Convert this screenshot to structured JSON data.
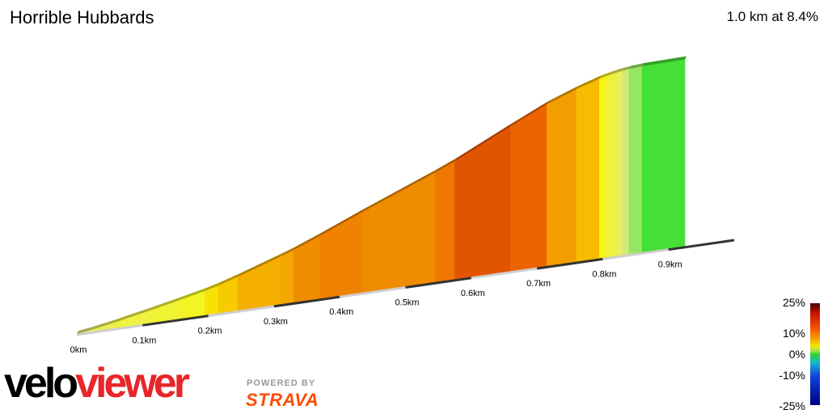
{
  "header": {
    "title": "Horrible Hubbards",
    "summary": "1.0 km at 8.4%"
  },
  "chart_data": {
    "type": "area",
    "title": "Horrible Hubbards",
    "subtitle": "1.0 km at 8.4%",
    "x_unit": "km",
    "x_ticks": [
      "0km",
      "0.1km",
      "0.2km",
      "0.3km",
      "0.4km",
      "0.5km",
      "0.6km",
      "0.7km",
      "0.8km",
      "0.9km"
    ],
    "xlim": [
      0,
      1.0
    ],
    "segments": [
      {
        "from": 0.0,
        "to": 0.02,
        "gradient": 4.0
      },
      {
        "from": 0.02,
        "to": 0.045,
        "gradient": 5.0
      },
      {
        "from": 0.045,
        "to": 0.06,
        "gradient": 5.5
      },
      {
        "from": 0.06,
        "to": 0.075,
        "gradient": 6.0
      },
      {
        "from": 0.075,
        "to": 0.11,
        "gradient": 5.8
      },
      {
        "from": 0.11,
        "to": 0.155,
        "gradient": 6.2
      },
      {
        "from": 0.155,
        "to": 0.195,
        "gradient": 6.6
      },
      {
        "from": 0.195,
        "to": 0.215,
        "gradient": 8.0
      },
      {
        "from": 0.215,
        "to": 0.245,
        "gradient": 9.0
      },
      {
        "from": 0.245,
        "to": 0.31,
        "gradient": 10.0
      },
      {
        "from": 0.31,
        "to": 0.33,
        "gradient": 10.5
      },
      {
        "from": 0.33,
        "to": 0.37,
        "gradient": 12.0
      },
      {
        "from": 0.37,
        "to": 0.435,
        "gradient": 12.5
      },
      {
        "from": 0.435,
        "to": 0.545,
        "gradient": 12.0
      },
      {
        "from": 0.545,
        "to": 0.575,
        "gradient": 13.0
      },
      {
        "from": 0.575,
        "to": 0.66,
        "gradient": 14.5
      },
      {
        "from": 0.66,
        "to": 0.715,
        "gradient": 14.0
      },
      {
        "from": 0.715,
        "to": 0.76,
        "gradient": 11.0
      },
      {
        "from": 0.76,
        "to": 0.795,
        "gradient": 9.5
      },
      {
        "from": 0.795,
        "to": 0.805,
        "gradient": 7.0
      },
      {
        "from": 0.805,
        "to": 0.82,
        "gradient": 6.0
      },
      {
        "from": 0.82,
        "to": 0.83,
        "gradient": 5.0
      },
      {
        "from": 0.83,
        "to": 0.84,
        "gradient": 3.5
      },
      {
        "from": 0.84,
        "to": 0.86,
        "gradient": 2.0
      },
      {
        "from": 0.86,
        "to": 0.925,
        "gradient": 0.5
      }
    ],
    "legend": {
      "labels": [
        "25%",
        "10%",
        "0%",
        "-10%",
        "-25%"
      ],
      "values": [
        25,
        10,
        0,
        -10,
        -25
      ]
    },
    "grid": false
  },
  "branding": {
    "velo_part1": "velo",
    "velo_part2": "viewer",
    "powered_by": "POWERED BY",
    "strava": "STRAVA"
  }
}
